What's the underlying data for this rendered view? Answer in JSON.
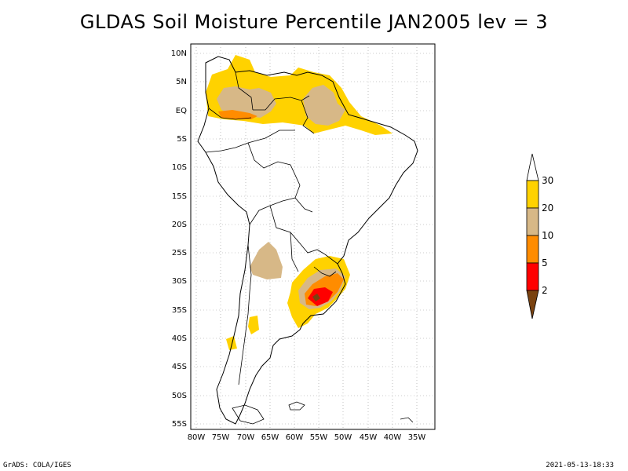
{
  "title": "GLDAS Soil Moisture Percentile JAN2005 lev = 3",
  "lat_labels": [
    "10N",
    "5N",
    "EQ",
    "5S",
    "10S",
    "15S",
    "20S",
    "25S",
    "30S",
    "35S",
    "40S",
    "45S",
    "50S",
    "55S"
  ],
  "lon_labels": [
    "80W",
    "75W",
    "70W",
    "65W",
    "60W",
    "55W",
    "50W",
    "45W",
    "40W",
    "35W"
  ],
  "legend": {
    "labels": [
      "30",
      "20",
      "10",
      "5",
      "2"
    ],
    "colors": {
      "above30": "#ffffff",
      "c20_30": "#ffd200",
      "c10_20": "#d7b887",
      "c5_10": "#ff8c00",
      "c2_5": "#ff0000",
      "below2": "#7a4210"
    }
  },
  "footer": {
    "left": "GrADS: COLA/IGES",
    "right": "2021-05-13-18:33"
  }
}
